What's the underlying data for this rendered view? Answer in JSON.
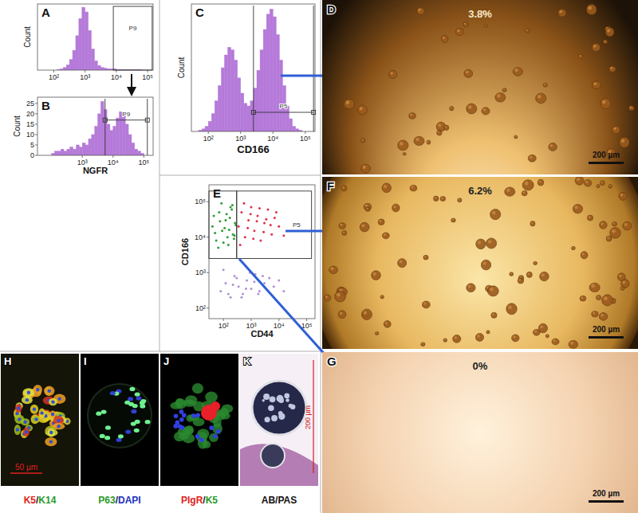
{
  "chart_data": [
    {
      "type": "histogram",
      "title": "A",
      "y_label": "Count",
      "bins": [
        40,
        50,
        63,
        79,
        100,
        126,
        158,
        200,
        251,
        316,
        398,
        501,
        631,
        794,
        1000,
        1259,
        1585,
        1995,
        2512,
        3162,
        3981,
        5012,
        6310,
        7943,
        10000,
        12589,
        15849,
        19953,
        25119,
        31623,
        39811,
        50119,
        63096,
        79433,
        100000,
        125893,
        158489
      ],
      "values": [
        0,
        0,
        0,
        0,
        0,
        1,
        2,
        4,
        8,
        16,
        30,
        52,
        78,
        95,
        88,
        60,
        32,
        14,
        7,
        4,
        3,
        2,
        2,
        2,
        1,
        1,
        1,
        1,
        1,
        1,
        1,
        1,
        0,
        0,
        0,
        0
      ],
      "color": "#b57ad9",
      "log": "x",
      "xlim": [
        30,
        150000
      ],
      "xticks": [
        {
          "value": 100,
          "label": "10²"
        },
        {
          "value": 1000,
          "label": "10³"
        },
        {
          "value": 10000,
          "label": "10⁴"
        },
        {
          "value": 100000,
          "label": "10⁵"
        }
      ],
      "ylim": [
        0,
        100
      ],
      "tick_labels": "x",
      "annotations": [
        {
          "text": "P9",
          "x": [
            8000,
            140000
          ]
        }
      ]
    },
    {
      "type": "histogram",
      "title": "B",
      "y_label": "Count",
      "x_label": "NGFR",
      "bins": [
        40,
        50,
        63,
        79,
        100,
        126,
        158,
        200,
        251,
        316,
        398,
        501,
        631,
        794,
        1000,
        1259,
        1585,
        1995,
        2512,
        3162,
        3981,
        5012,
        6310,
        7943,
        10000,
        12589,
        15849,
        19953,
        25119,
        31623,
        39811,
        50119,
        63096,
        79433,
        100000,
        125893,
        158489
      ],
      "values": [
        0,
        0,
        0,
        0,
        1,
        2,
        2,
        3,
        2,
        3,
        4,
        3,
        5,
        4,
        6,
        5,
        8,
        10,
        14,
        20,
        26,
        22,
        15,
        12,
        14,
        18,
        21,
        20,
        15,
        10,
        6,
        3,
        2,
        1,
        0,
        0
      ],
      "color": "#b57ad9",
      "log": "x",
      "xlim": [
        35,
        200000
      ],
      "xticks": [
        {
          "value": 1000,
          "label": "10³"
        },
        {
          "value": 10000,
          "label": "10⁴"
        },
        {
          "value": 100000,
          "label": "10⁵"
        }
      ],
      "ylim": [
        0,
        28
      ],
      "yticks": [
        0,
        5,
        10,
        15,
        20,
        25
      ],
      "annotations": [
        {
          "text": "P9",
          "x": [
            5500,
            130000
          ],
          "y": 17
        }
      ]
    },
    {
      "type": "histogram",
      "title": "C",
      "y_label": "Count",
      "x_label": "CD166",
      "bins": [
        40,
        50,
        63,
        79,
        100,
        126,
        158,
        200,
        251,
        316,
        398,
        501,
        631,
        794,
        1000,
        1259,
        1585,
        1995,
        2512,
        3162,
        3981,
        5012,
        6310,
        7943,
        10000,
        12589,
        15849,
        19953,
        25119,
        31623,
        39811,
        50119,
        63096,
        79433,
        100000,
        125893,
        158489
      ],
      "values": [
        0,
        1,
        2,
        4,
        8,
        14,
        24,
        36,
        50,
        60,
        66,
        64,
        56,
        42,
        30,
        22,
        20,
        24,
        34,
        48,
        64,
        80,
        92,
        96,
        90,
        76,
        56,
        36,
        20,
        10,
        4,
        2,
        1,
        0,
        0,
        0
      ],
      "color": "#b57ad9",
      "log": "x",
      "xlim": [
        30,
        200000
      ],
      "xticks": [
        {
          "value": 100,
          "label": "10²"
        },
        {
          "value": 1000,
          "label": "10³"
        },
        {
          "value": 10000,
          "label": "10⁴"
        },
        {
          "value": 100000,
          "label": "10⁵"
        }
      ],
      "ylim": [
        0,
        100
      ],
      "tick_labels": "x",
      "annotations": [
        {
          "text": "P5",
          "x": [
            2500,
            180000
          ],
          "y": 15
        }
      ]
    },
    {
      "type": "scatter",
      "title": "E",
      "x_label": "CD44",
      "y_label": "CD166",
      "log": true,
      "xlim": [
        30,
        200000
      ],
      "ylim": [
        50,
        300000
      ],
      "xticks": [
        {
          "value": 100,
          "label": "10²"
        },
        {
          "value": 1000,
          "label": "10³"
        },
        {
          "value": 10000,
          "label": "10⁴"
        },
        {
          "value": 100000,
          "label": "10⁵"
        }
      ],
      "yticks": [
        {
          "value": 100,
          "label": "10²"
        },
        {
          "value": 1000,
          "label": "10³"
        },
        {
          "value": 10000,
          "label": "10⁴"
        },
        {
          "value": 100000,
          "label": "10⁵"
        }
      ],
      "series": [
        {
          "color": "#2e9e3a",
          "marker": "dot",
          "x": [
            40,
            55,
            70,
            90,
            120,
            150,
            180,
            220,
            260,
            45,
            65,
            85,
            110,
            140,
            170,
            200,
            240,
            280,
            50,
            75,
            100,
            130,
            160,
            210,
            250
          ],
          "values": [
            20000,
            8000,
            50000,
            15000,
            30000,
            6000,
            70000,
            12000,
            25000,
            40000,
            5000,
            90000,
            18000,
            10000,
            35000,
            60000,
            9000,
            22000,
            13000,
            28000,
            7000,
            45000,
            16000,
            80000,
            11000
          ]
        },
        {
          "color": "#e0304a",
          "marker": "dot",
          "x": [
            350,
            450,
            600,
            800,
            1000,
            1300,
            1700,
            2200,
            3000,
            4000,
            5500,
            7000,
            10000,
            400,
            550,
            750,
            950,
            1200,
            1600,
            2000,
            2800,
            3500,
            5000,
            8000,
            15000
          ],
          "values": [
            20000,
            50000,
            10000,
            30000,
            70000,
            15000,
            40000,
            8000,
            25000,
            60000,
            12000,
            35000,
            20000,
            6000,
            90000,
            18000,
            45000,
            9000,
            28000,
            65000,
            14000,
            32000,
            22000,
            50000,
            11000
          ]
        },
        {
          "color": "#b090d8",
          "marker": "dot",
          "x": [
            80,
            120,
            180,
            250,
            350,
            500,
            700,
            1000,
            1400,
            2000,
            3000,
            4500,
            6500,
            10000,
            15000,
            100,
            150,
            220,
            300,
            450,
            650,
            900,
            1300,
            1800,
            2600
          ],
          "values": [
            300,
            500,
            200,
            800,
            400,
            250,
            600,
            350,
            900,
            300,
            500,
            700,
            400,
            600,
            300,
            1200,
            250,
            450,
            700,
            200,
            350,
            1000,
            550,
            250,
            800
          ]
        }
      ],
      "annotations": [
        {
          "x": [
            30,
            300
          ],
          "y": [
            2500,
            200000
          ]
        },
        {
          "text": "P5",
          "x": [
            300,
            150000
          ],
          "y": [
            2500,
            200000
          ]
        }
      ]
    }
  ],
  "images": [
    {
      "label": "D",
      "text": "3.8%",
      "scale_bar": "200 µm"
    },
    {
      "label": "F",
      "text": "6.2%",
      "scale_bar": "200 µm"
    },
    {
      "label": "G",
      "text": "0%",
      "scale_bar": "200 µm"
    }
  ],
  "micrographs": [
    {
      "label": "H",
      "stain": [
        {
          "text": "K5",
          "color": "#e0201a"
        },
        {
          "text": "/",
          "color": "#222222"
        },
        {
          "text": "K14",
          "color": "#2a9a2a"
        }
      ],
      "scale_bar": "50 µm"
    },
    {
      "label": "I",
      "stain": [
        {
          "text": "P63",
          "color": "#2a9a2a"
        },
        {
          "text": "/",
          "color": "#222222"
        },
        {
          "text": "DAPI",
          "color": "#2030c0"
        }
      ]
    },
    {
      "label": "J",
      "stain": [
        {
          "text": "PIgR",
          "color": "#e0201a"
        },
        {
          "text": "/",
          "color": "#222222"
        },
        {
          "text": "K5",
          "color": "#2a9a2a"
        }
      ]
    },
    {
      "label": "K",
      "stain": [
        {
          "text": "AB/PAS",
          "color": "#111111"
        }
      ],
      "scale_bar": "200 µm"
    }
  ]
}
